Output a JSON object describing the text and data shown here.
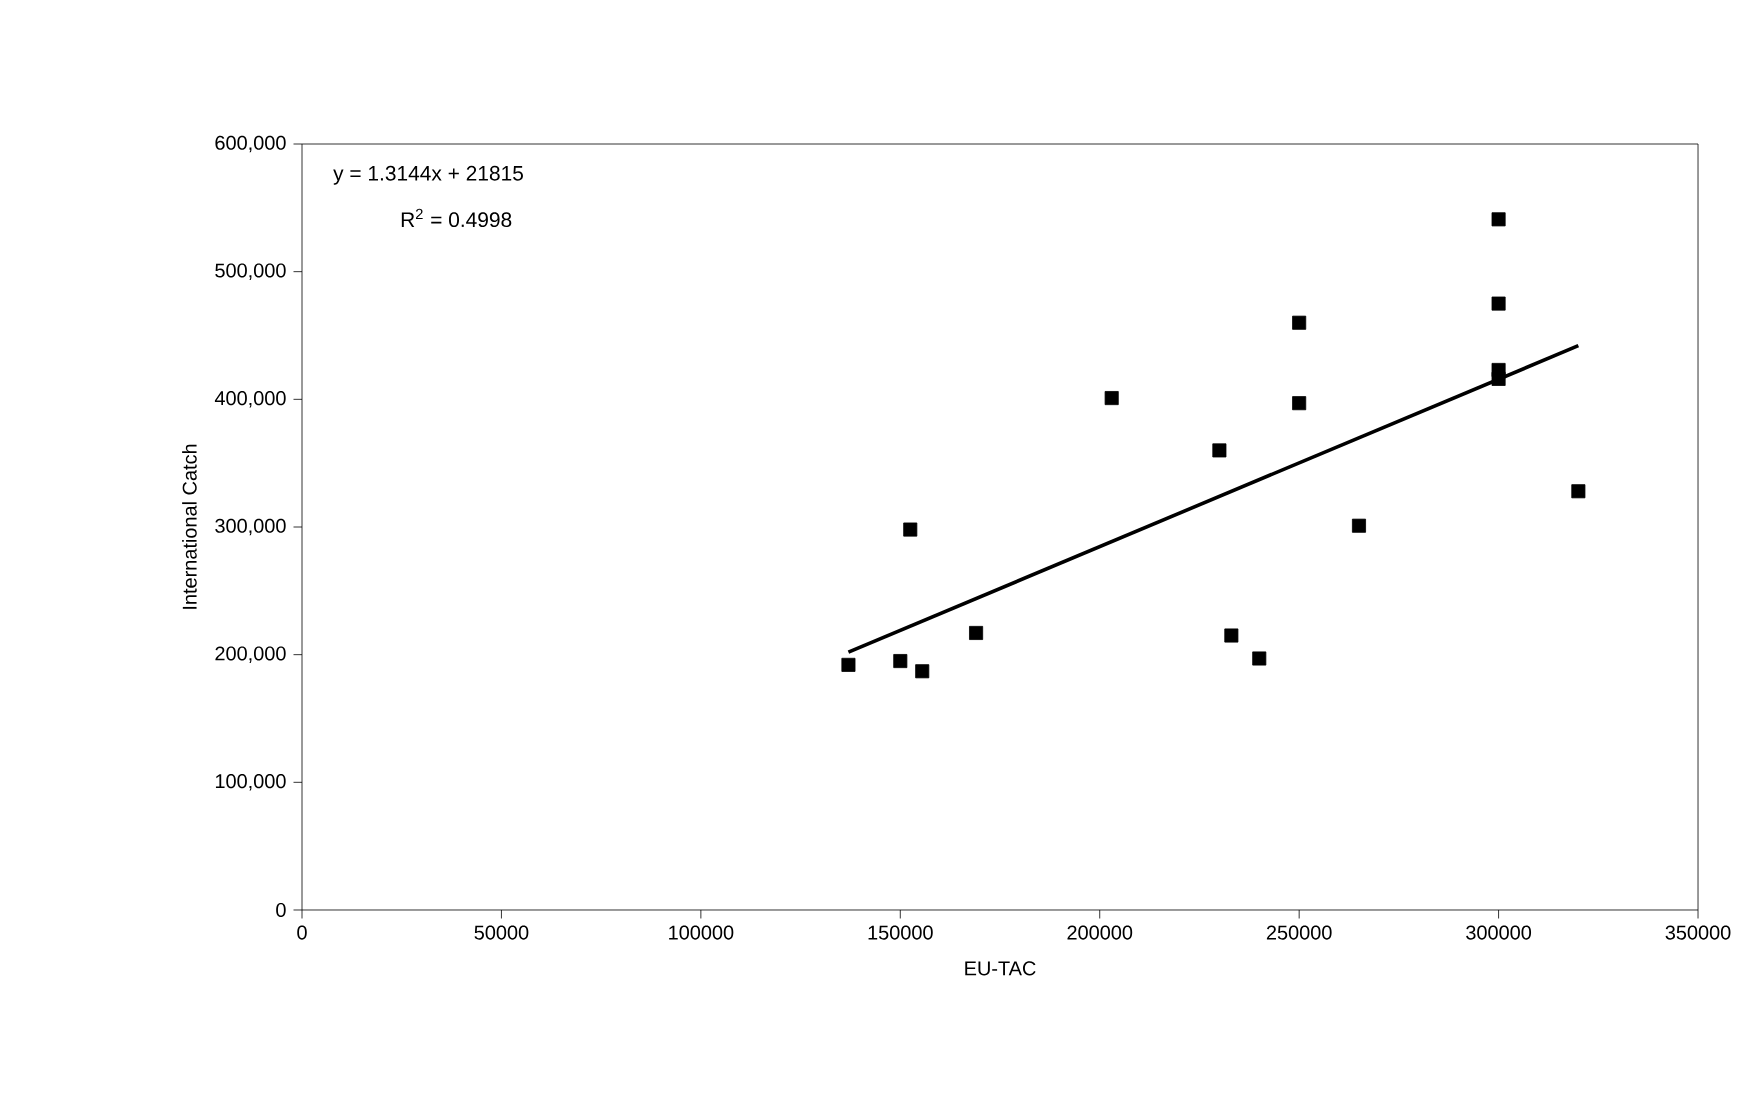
{
  "chart_data": {
    "type": "scatter",
    "xlabel": "EU-TAC",
    "ylabel": "International Catch",
    "annotations": [
      "y = 1.3144x + 21815",
      "R$^{2}$ = 0.4998"
    ],
    "xlim": [
      0,
      350000
    ],
    "ylim": [
      0,
      600000
    ],
    "xticks": [
      0,
      50000,
      100000,
      150000,
      200000,
      250000,
      300000,
      350000
    ],
    "yticks": [
      0,
      {
        "value": 100000,
        "label": "100,000"
      },
      {
        "value": 200000,
        "label": "200,000"
      },
      {
        "value": 300000,
        "label": "300,000"
      },
      {
        "value": 400000,
        "label": "400,000"
      },
      {
        "value": 500000,
        "label": "500,000"
      },
      {
        "value": 600000,
        "label": "600,000"
      }
    ],
    "series": [
      {
        "marker": "square",
        "color": "#000000",
        "x": [
          137000,
          150000,
          152500,
          155500,
          169000,
          203000,
          230000,
          233000,
          240000,
          250000,
          250000,
          265000,
          300000,
          300000,
          300000,
          300000,
          320000
        ],
        "values": [
          192000,
          195000,
          298000,
          187000,
          217000,
          401000,
          360000,
          215000,
          197000,
          460000,
          397000,
          301000,
          541000,
          475000,
          423000,
          416000,
          328000
        ]
      },
      {
        "type": "line",
        "marker": "none",
        "line_style": "solid",
        "color": "#000000",
        "x": [
          137000,
          320000
        ],
        "values": [
          202000,
          442000
        ]
      }
    ]
  }
}
